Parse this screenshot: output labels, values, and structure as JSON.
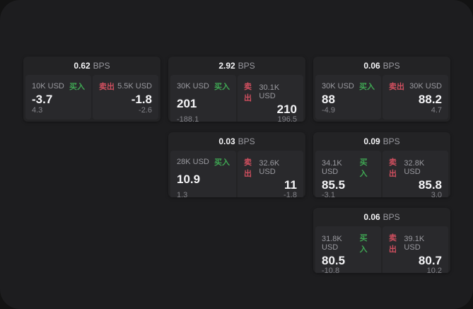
{
  "labels": {
    "bps_unit": "BPS",
    "buy": "买入",
    "sell": "卖出"
  },
  "colors": {
    "outer_background": "#131313",
    "window_background": "#1d1d1f",
    "card_background": "#232325",
    "panel_background": "#29292c",
    "buy_green": "#3fa653",
    "sell_red": "#d04f5f",
    "value_white": "#f5f5f7",
    "label_gray": "#9a9aa0"
  },
  "cards": [
    {
      "bps": "0.62",
      "buy": {
        "amount": "10K USD",
        "price": "-3.7",
        "sub": "4.3"
      },
      "sell": {
        "amount": "5.5K USD",
        "price": "-1.8",
        "sub": "-2.6"
      }
    },
    {
      "bps": "2.92",
      "buy": {
        "amount": "30K USD",
        "price": "201",
        "sub": "-188.1"
      },
      "sell": {
        "amount": "30.1K USD",
        "price": "210",
        "sub": "196.5"
      }
    },
    {
      "bps": "0.06",
      "buy": {
        "amount": "30K USD",
        "price": "88",
        "sub": "-4.9"
      },
      "sell": {
        "amount": "30K USD",
        "price": "88.2",
        "sub": "4.7"
      }
    },
    {
      "bps": "0.03",
      "buy": {
        "amount": "28K USD",
        "price": "10.9",
        "sub": "1.3"
      },
      "sell": {
        "amount": "32.6K USD",
        "price": "11",
        "sub": "-1.8"
      }
    },
    {
      "bps": "0.09",
      "buy": {
        "amount": "34.1K USD",
        "price": "85.5",
        "sub": "-3.1"
      },
      "sell": {
        "amount": "32.8K USD",
        "price": "85.8",
        "sub": "3.0"
      }
    },
    {
      "bps": "0.06",
      "buy": {
        "amount": "31.8K USD",
        "price": "80.5",
        "sub": "-10.8"
      },
      "sell": {
        "amount": "39.1K USD",
        "price": "80.7",
        "sub": "10.2"
      }
    }
  ]
}
